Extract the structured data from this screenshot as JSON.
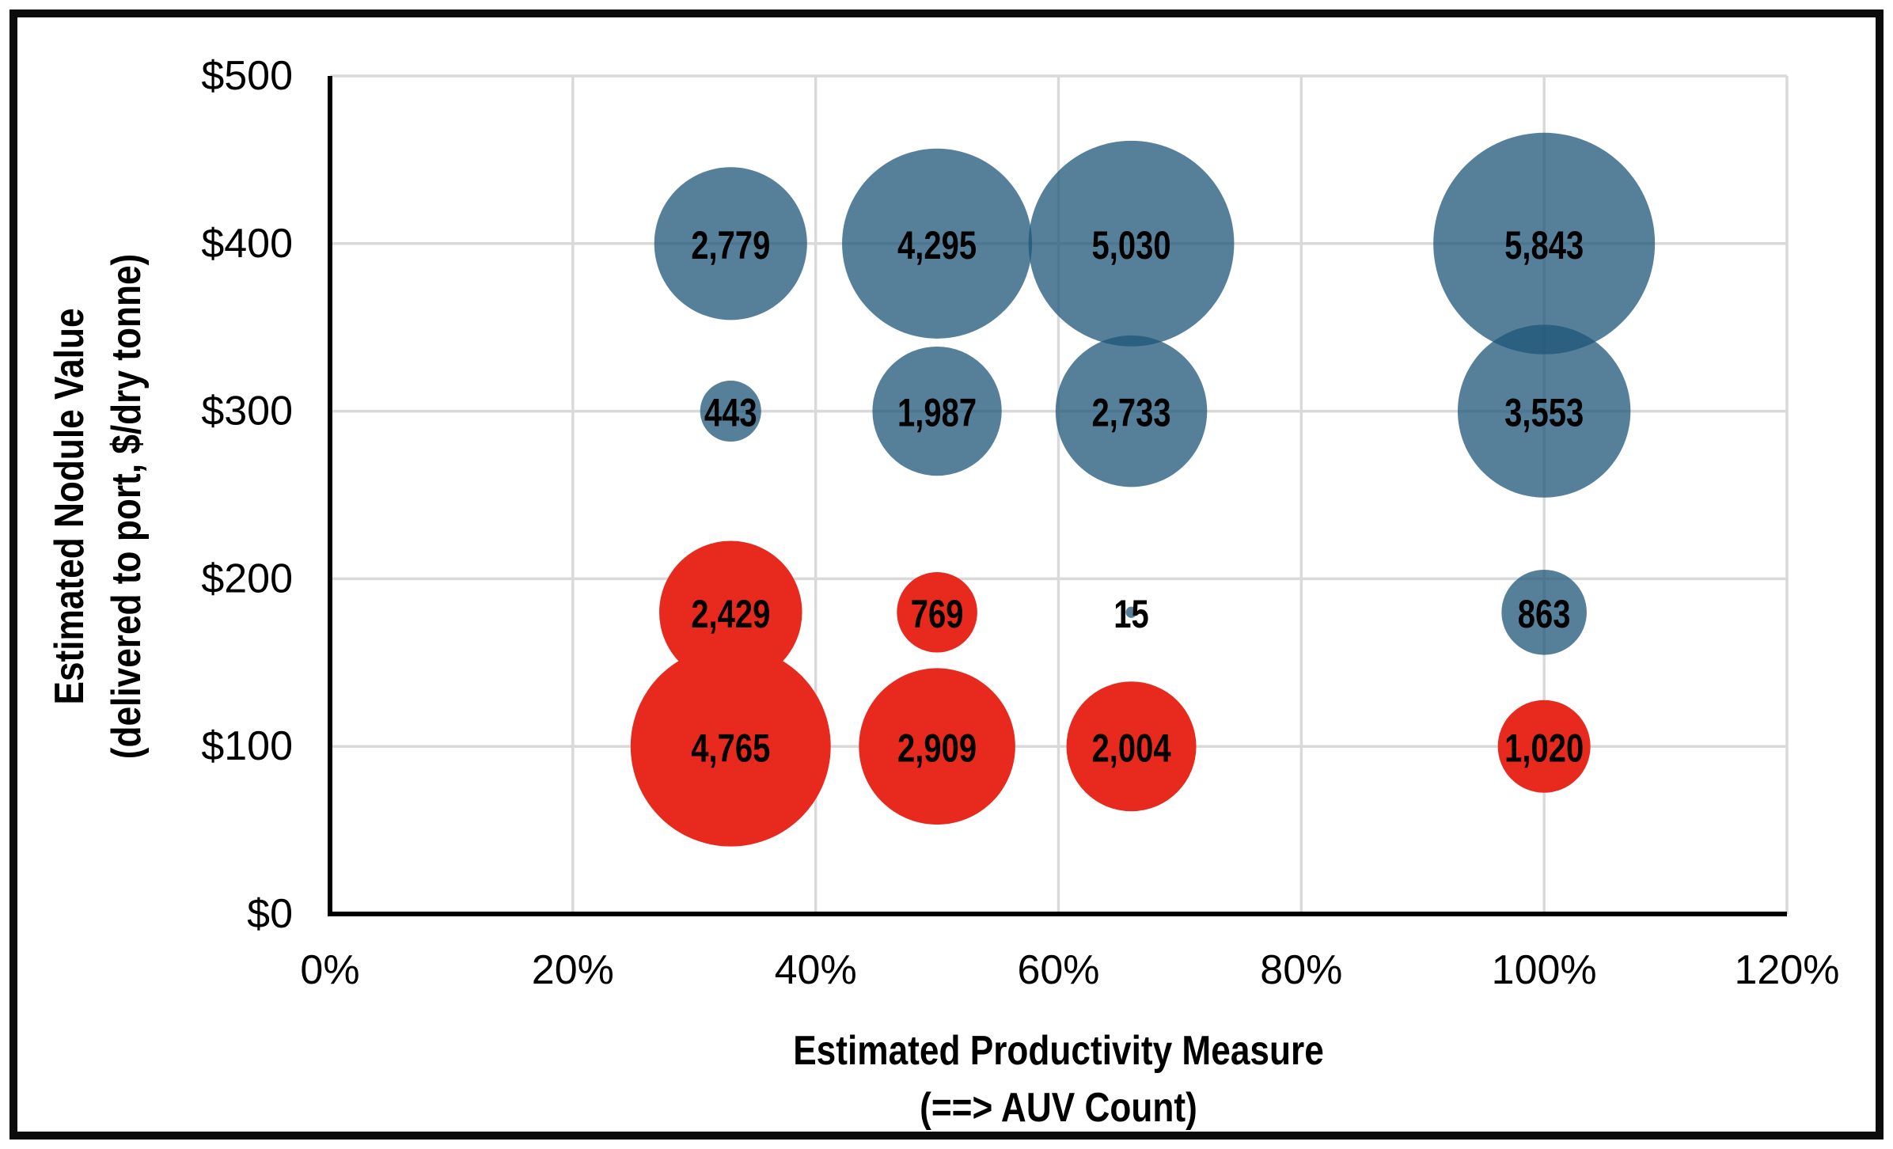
{
  "chart_data": {
    "type": "bubble",
    "xlabel_lines": [
      "Estimated Productivity Measure",
      "(==> AUV Count)"
    ],
    "ylabel_lines": [
      "Estimated Nodule Value",
      "(delivered to port, $/dry tonne)"
    ],
    "x_axis": {
      "min": 0,
      "max": 120,
      "tick_values": [
        0,
        20,
        40,
        60,
        80,
        100,
        120
      ],
      "tick_labels": [
        "0%",
        "20%",
        "40%",
        "60%",
        "80%",
        "100%",
        "120%"
      ],
      "unit": "percent"
    },
    "y_axis": {
      "min": 0,
      "max": 500,
      "tick_values": [
        0,
        100,
        200,
        300,
        400,
        500
      ],
      "tick_labels": [
        "$0",
        "$100",
        "$200",
        "$300",
        "$400",
        "$500"
      ],
      "unit": "$/dry tonne"
    },
    "grid": true,
    "legend": "none",
    "size_encoding": "bubble area proportional to value",
    "series": [
      {
        "name": "blue-series",
        "color": "#1E5678",
        "fill_opacity": 0.75,
        "apparent_color_on_white": "#56809A",
        "points": [
          {
            "x": 33,
            "y": 400,
            "value": 2779,
            "label": "2,779"
          },
          {
            "x": 50,
            "y": 400,
            "value": 4295,
            "label": "4,295"
          },
          {
            "x": 66,
            "y": 400,
            "value": 5030,
            "label": "5,030"
          },
          {
            "x": 100,
            "y": 400,
            "value": 5843,
            "label": "5,843"
          },
          {
            "x": 33,
            "y": 300,
            "value": 443,
            "label": "443"
          },
          {
            "x": 50,
            "y": 300,
            "value": 1987,
            "label": "1,987"
          },
          {
            "x": 66,
            "y": 300,
            "value": 2733,
            "label": "2,733"
          },
          {
            "x": 100,
            "y": 300,
            "value": 3553,
            "label": "3,553"
          },
          {
            "x": 66,
            "y": 180,
            "value": 15,
            "label": "15"
          },
          {
            "x": 100,
            "y": 180,
            "value": 863,
            "label": "863"
          }
        ]
      },
      {
        "name": "red-series",
        "color": "#E8291E",
        "fill_opacity": 1,
        "apparent_color_on_white": "#E8291E",
        "points": [
          {
            "x": 33,
            "y": 180,
            "value": 2429,
            "label": "2,429"
          },
          {
            "x": 50,
            "y": 180,
            "value": 769,
            "label": "769"
          },
          {
            "x": 33,
            "y": 100,
            "value": 4765,
            "label": "4,765"
          },
          {
            "x": 50,
            "y": 100,
            "value": 2909,
            "label": "2,909"
          },
          {
            "x": 66,
            "y": 100,
            "value": 2004,
            "label": "2,004"
          },
          {
            "x": 100,
            "y": 100,
            "value": 1020,
            "label": "1,020"
          }
        ]
      }
    ],
    "colors": {
      "gridline": "#D9D9D9",
      "axis_line": "#000000",
      "tick_text": "#000000",
      "label_text": "#000000",
      "frame_border": "#0B0B0B",
      "background": "#FFFFFF"
    }
  }
}
